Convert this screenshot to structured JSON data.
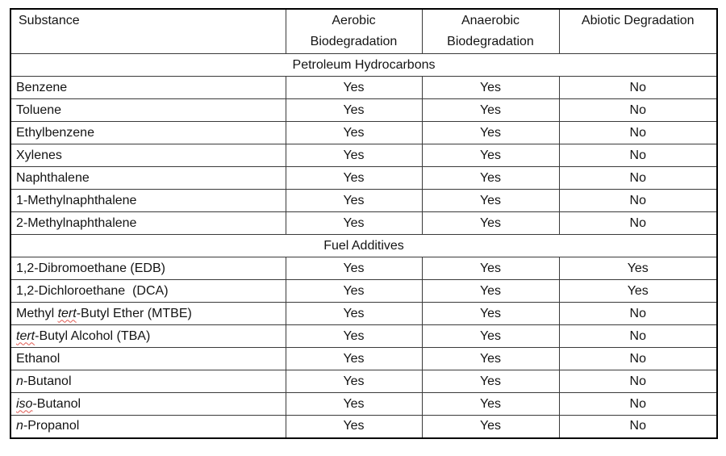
{
  "page": {
    "background": "#ffffff",
    "text_color": "#141414",
    "table_border_color": "#000000",
    "grid_line_color": "#3a3a3a",
    "spellcheck_squiggle_color": "#e05a52"
  },
  "table": {
    "columns": [
      "Substance",
      "Aerobic Biodegradation",
      "Anaerobic Biodegradation",
      "Abiotic Degradation"
    ],
    "sections": [
      {
        "title": "Petroleum Hydrocarbons",
        "rows": [
          {
            "name": [
              {
                "text": "Benzene"
              }
            ],
            "aerobic": "Yes",
            "anaerobic": "Yes",
            "abiotic": "No"
          },
          {
            "name": [
              {
                "text": "Toluene"
              }
            ],
            "aerobic": "Yes",
            "anaerobic": "Yes",
            "abiotic": "No"
          },
          {
            "name": [
              {
                "text": "Ethylbenzene"
              }
            ],
            "aerobic": "Yes",
            "anaerobic": "Yes",
            "abiotic": "No"
          },
          {
            "name": [
              {
                "text": "Xylenes"
              }
            ],
            "aerobic": "Yes",
            "anaerobic": "Yes",
            "abiotic": "No"
          },
          {
            "name": [
              {
                "text": "Naphthalene"
              }
            ],
            "aerobic": "Yes",
            "anaerobic": "Yes",
            "abiotic": "No"
          },
          {
            "name": [
              {
                "text": "1-Methylnaphthalene"
              }
            ],
            "aerobic": "Yes",
            "anaerobic": "Yes",
            "abiotic": "No"
          },
          {
            "name": [
              {
                "text": "2-Methylnaphthalene"
              }
            ],
            "aerobic": "Yes",
            "anaerobic": "Yes",
            "abiotic": "No"
          }
        ]
      },
      {
        "title": "Fuel Additives",
        "rows": [
          {
            "name": [
              {
                "text": "1,2-Dibromoethane (EDB)"
              }
            ],
            "aerobic": "Yes",
            "anaerobic": "Yes",
            "abiotic": "Yes"
          },
          {
            "name": [
              {
                "text": "1,2-Dichloroethane  (DCA)"
              }
            ],
            "aerobic": "Yes",
            "anaerobic": "Yes",
            "abiotic": "Yes"
          },
          {
            "name": [
              {
                "text": "Methyl "
              },
              {
                "text": "tert",
                "italic": true,
                "squiggle": true
              },
              {
                "text": "-Butyl Ether (MTBE)"
              }
            ],
            "aerobic": "Yes",
            "anaerobic": "Yes",
            "abiotic": "No"
          },
          {
            "name": [
              {
                "text": "tert",
                "italic": true,
                "squiggle": true
              },
              {
                "text": "-Butyl Alcohol (TBA)"
              }
            ],
            "aerobic": "Yes",
            "anaerobic": "Yes",
            "abiotic": "No"
          },
          {
            "name": [
              {
                "text": "Ethanol"
              }
            ],
            "aerobic": "Yes",
            "anaerobic": "Yes",
            "abiotic": "No"
          },
          {
            "name": [
              {
                "text": "n",
                "italic": true
              },
              {
                "text": "-Butanol"
              }
            ],
            "aerobic": "Yes",
            "anaerobic": "Yes",
            "abiotic": "No"
          },
          {
            "name": [
              {
                "text": "iso",
                "italic": true,
                "squiggle": true
              },
              {
                "text": "-Butanol"
              }
            ],
            "aerobic": "Yes",
            "anaerobic": "Yes",
            "abiotic": "No"
          },
          {
            "name": [
              {
                "text": "n",
                "italic": true
              },
              {
                "text": "-Propanol"
              }
            ],
            "aerobic": "Yes",
            "anaerobic": "Yes",
            "abiotic": "No"
          }
        ]
      }
    ]
  }
}
